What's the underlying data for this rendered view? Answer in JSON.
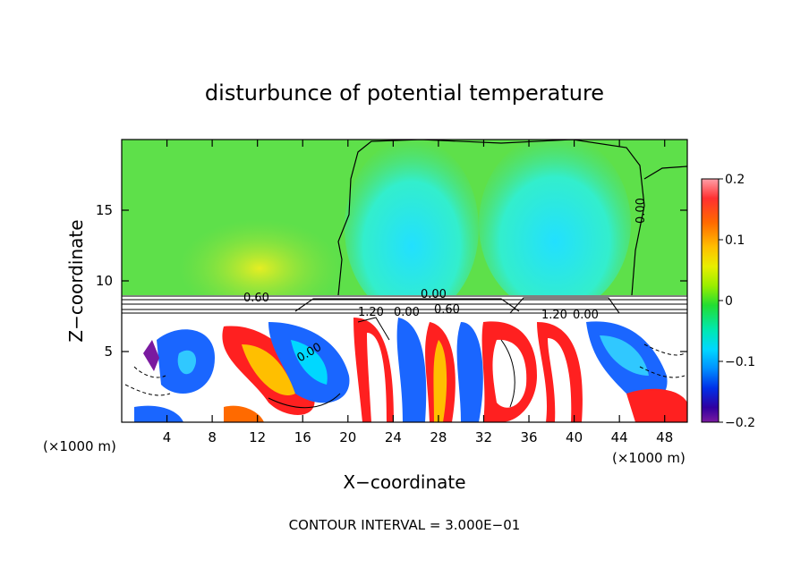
{
  "chart_data": {
    "type": "heatmap",
    "title": "disturbunce of potential temperature",
    "xlabel": "X−coordinate",
    "ylabel": "Z−coordinate",
    "x_unit_left": "(×1000 m)",
    "x_unit_right": "(×1000 m)",
    "xlim": [
      0,
      50
    ],
    "ylim": [
      0,
      20
    ],
    "x_ticks": [
      "4",
      "8",
      "12",
      "16",
      "20",
      "24",
      "28",
      "32",
      "36",
      "40",
      "44",
      "48"
    ],
    "y_ticks": [
      "5",
      "10",
      "15"
    ],
    "colorbar": {
      "range": [
        -0.2,
        0.2
      ],
      "labels": [
        "0.2",
        "0.1",
        "0",
        "−0.1",
        "−0.2"
      ]
    },
    "contour_labels": [
      "0.00",
      "0.60",
      "0.00",
      "0.00",
      "0.00",
      "1.20",
      "0.60",
      "1.20",
      "0.00"
    ],
    "footer": "CONTOUR INTERVAL = 3.000E−01",
    "colors": {
      "upper_field": "#44dd44",
      "cyan_region": "#33eecc",
      "blue": "#1a66ff",
      "red": "#ff2020",
      "purple": "#7a1aa0"
    }
  }
}
